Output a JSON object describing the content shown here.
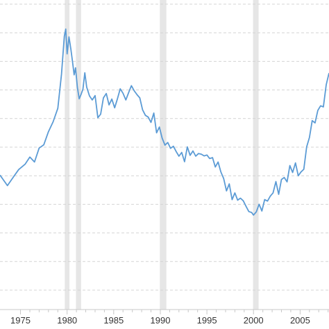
{
  "chart_data": {
    "type": "line",
    "title": "",
    "xlabel": "",
    "ylabel": "",
    "x_tick_labels": [
      "1975",
      "1980",
      "1985",
      "1990",
      "1995",
      "2000",
      "2005"
    ],
    "xlim": [
      1972.8,
      2008.1
    ],
    "grid": true,
    "legend": "none",
    "recessions": [
      {
        "start": 1979.75,
        "end": 1980.25
      },
      {
        "start": 1980.95,
        "end": 1981.5
      },
      {
        "start": 1989.95,
        "end": 1990.65
      },
      {
        "start": 1999.95,
        "end": 2000.55
      }
    ],
    "series": [
      {
        "x": [
          1972.8,
          1973.6,
          1974.2,
          1974.8,
          1975.5,
          1976.0,
          1976.5,
          1977.0,
          1977.5,
          1978.0,
          1978.5,
          1979.0,
          1979.4,
          1979.7,
          1979.85,
          1980.0,
          1980.2,
          1980.4,
          1980.6,
          1980.75,
          1980.9,
          1981.1,
          1981.3,
          1981.5,
          1981.7,
          1981.9,
          1982.1,
          1982.4,
          1982.7,
          1983.0,
          1983.3,
          1983.6,
          1983.9,
          1984.2,
          1984.5,
          1984.8,
          1985.1,
          1985.4,
          1985.7,
          1986.0,
          1986.3,
          1986.6,
          1986.9,
          1987.2,
          1987.5,
          1987.8,
          1988.1,
          1988.4,
          1988.7,
          1989.0,
          1989.3,
          1989.6,
          1989.9,
          1990.2,
          1990.5,
          1990.8,
          1991.1,
          1991.4,
          1991.7,
          1992.0,
          1992.3,
          1992.6,
          1992.9,
          1993.2,
          1993.5,
          1993.8,
          1994.1,
          1994.4,
          1994.7,
          1995.0,
          1995.3,
          1995.6,
          1995.9,
          1996.2,
          1996.5,
          1996.8,
          1997.1,
          1997.4,
          1997.7,
          1998.0,
          1998.3,
          1998.6,
          1998.9,
          1999.2,
          1999.5,
          1999.8,
          2000.0,
          2000.3,
          2000.6,
          2000.9,
          2001.2,
          2001.5,
          2001.8,
          2002.1,
          2002.4,
          2002.7,
          2003.0,
          2003.3,
          2003.6,
          2003.9,
          2004.2,
          2004.5,
          2004.8,
          2005.1,
          2005.4,
          2005.7,
          2006.0,
          2006.3,
          2006.6,
          2006.9,
          2007.2,
          2007.5,
          2007.8,
          2008.1
        ],
        "values": [
          30.4,
          26.8,
          29.6,
          32.3,
          34.2,
          36.6,
          34.9,
          39.7,
          40.8,
          45.3,
          48.7,
          53.3,
          65.0,
          78.1,
          80.5,
          72.0,
          77.8,
          73.6,
          68.9,
          64.8,
          67.2,
          60.5,
          56.6,
          58.1,
          59.9,
          65.5,
          60.6,
          57.6,
          56.2,
          57.7,
          50.1,
          51.3,
          56.9,
          58.4,
          54.5,
          56.5,
          53.5,
          56.6,
          60.0,
          58.5,
          56.2,
          58.7,
          61.1,
          59.3,
          58.0,
          56.9,
          52.8,
          50.9,
          50.3,
          48.5,
          51.7,
          44.9,
          46.9,
          43.1,
          40.7,
          41.6,
          39.6,
          40.3,
          38.5,
          36.9,
          38.2,
          35.0,
          40.1,
          37.2,
          38.7,
          36.9,
          37.8,
          37.6,
          37.0,
          37.3,
          36.1,
          36.4,
          33.2,
          34.9,
          31.5,
          29.2,
          25.0,
          27.4,
          22.0,
          24.3,
          21.8,
          22.5,
          21.6,
          19.7,
          17.9,
          17.6,
          16.7,
          17.8,
          20.4,
          18.1,
          22.0,
          21.5,
          23.2,
          24.3,
          28.2,
          23.8,
          28.9,
          29.6,
          28.1,
          33.7,
          31.3,
          34.6,
          30.2,
          31.5,
          32.4,
          40.1,
          43.3,
          49.1,
          48.3,
          52.6,
          54.2,
          53.8,
          61.4,
          65.4
        ]
      }
    ]
  }
}
